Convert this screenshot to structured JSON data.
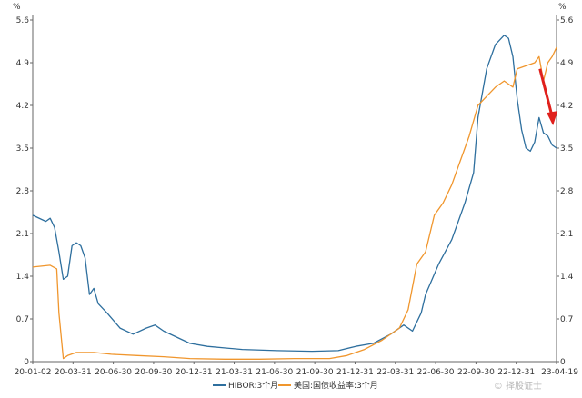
{
  "chart_data": {
    "type": "line",
    "unit_left": "%",
    "unit_right": "%",
    "ylim": [
      0,
      5.6
    ],
    "y_ticks": [
      "0",
      "0.7",
      "1.4",
      "2.1",
      "2.8",
      "3.5",
      "4.2",
      "4.9",
      "5.6"
    ],
    "x_ticks": [
      "20-01-02",
      "20-03-31",
      "20-06-30",
      "20-09-30",
      "20-12-31",
      "21-03-31",
      "21-06-30",
      "21-09-30",
      "21-12-31",
      "22-03-31",
      "22-06-30",
      "22-09-30",
      "22-12-31",
      "23-04-19"
    ],
    "grid": false,
    "legend_position": "bottom",
    "series": [
      {
        "name": "HIBOR:3个月",
        "color": "#2e6f9e",
        "points": [
          [
            0,
            2.4
          ],
          [
            3,
            2.3
          ],
          [
            4,
            2.35
          ],
          [
            5,
            2.2
          ],
          [
            6,
            1.8
          ],
          [
            7,
            1.35
          ],
          [
            8,
            1.4
          ],
          [
            9,
            1.9
          ],
          [
            10,
            1.95
          ],
          [
            11,
            1.9
          ],
          [
            12,
            1.7
          ],
          [
            13,
            1.1
          ],
          [
            14,
            1.2
          ],
          [
            15,
            0.95
          ],
          [
            17,
            0.8
          ],
          [
            20,
            0.55
          ],
          [
            23,
            0.45
          ],
          [
            26,
            0.55
          ],
          [
            28,
            0.6
          ],
          [
            30,
            0.5
          ],
          [
            33,
            0.4
          ],
          [
            36,
            0.3
          ],
          [
            40,
            0.25
          ],
          [
            48,
            0.2
          ],
          [
            56,
            0.18
          ],
          [
            64,
            0.17
          ],
          [
            70,
            0.18
          ],
          [
            74,
            0.25
          ],
          [
            78,
            0.3
          ],
          [
            82,
            0.45
          ],
          [
            85,
            0.6
          ],
          [
            87,
            0.5
          ],
          [
            89,
            0.8
          ],
          [
            90,
            1.1
          ],
          [
            93,
            1.6
          ],
          [
            96,
            2.0
          ],
          [
            99,
            2.6
          ],
          [
            101,
            3.1
          ],
          [
            102,
            4.0
          ],
          [
            104,
            4.8
          ],
          [
            106,
            5.2
          ],
          [
            108,
            5.35
          ],
          [
            109,
            5.3
          ],
          [
            110,
            5.0
          ],
          [
            111,
            4.3
          ],
          [
            112,
            3.8
          ],
          [
            113,
            3.5
          ],
          [
            114,
            3.45
          ],
          [
            115,
            3.6
          ],
          [
            116,
            4.0
          ],
          [
            117,
            3.75
          ],
          [
            118,
            3.7
          ],
          [
            119,
            3.55
          ],
          [
            120,
            3.5
          ]
        ]
      },
      {
        "name": "美国:国债收益率:3个月",
        "color": "#f0962d",
        "points": [
          [
            0,
            1.55
          ],
          [
            4,
            1.58
          ],
          [
            5.5,
            1.52
          ],
          [
            6,
            0.8
          ],
          [
            7,
            0.05
          ],
          [
            8,
            0.1
          ],
          [
            10,
            0.15
          ],
          [
            14,
            0.15
          ],
          [
            18,
            0.12
          ],
          [
            24,
            0.1
          ],
          [
            30,
            0.08
          ],
          [
            36,
            0.05
          ],
          [
            44,
            0.04
          ],
          [
            52,
            0.04
          ],
          [
            60,
            0.05
          ],
          [
            68,
            0.05
          ],
          [
            72,
            0.1
          ],
          [
            76,
            0.2
          ],
          [
            80,
            0.35
          ],
          [
            84,
            0.55
          ],
          [
            86,
            0.85
          ],
          [
            88,
            1.6
          ],
          [
            90,
            1.8
          ],
          [
            92,
            2.4
          ],
          [
            94,
            2.6
          ],
          [
            96,
            2.9
          ],
          [
            98,
            3.3
          ],
          [
            100,
            3.7
          ],
          [
            102,
            4.2
          ],
          [
            104,
            4.35
          ],
          [
            106,
            4.5
          ],
          [
            108,
            4.6
          ],
          [
            110,
            4.5
          ],
          [
            111,
            4.8
          ],
          [
            113,
            4.85
          ],
          [
            115,
            4.9
          ],
          [
            116,
            5.0
          ],
          [
            117,
            4.6
          ],
          [
            118,
            4.9
          ],
          [
            119,
            5.0
          ],
          [
            120,
            5.15
          ]
        ]
      }
    ]
  },
  "watermark": "© 择股证士",
  "colors": {
    "arrow": "#e0201c",
    "axis": "#666666"
  }
}
